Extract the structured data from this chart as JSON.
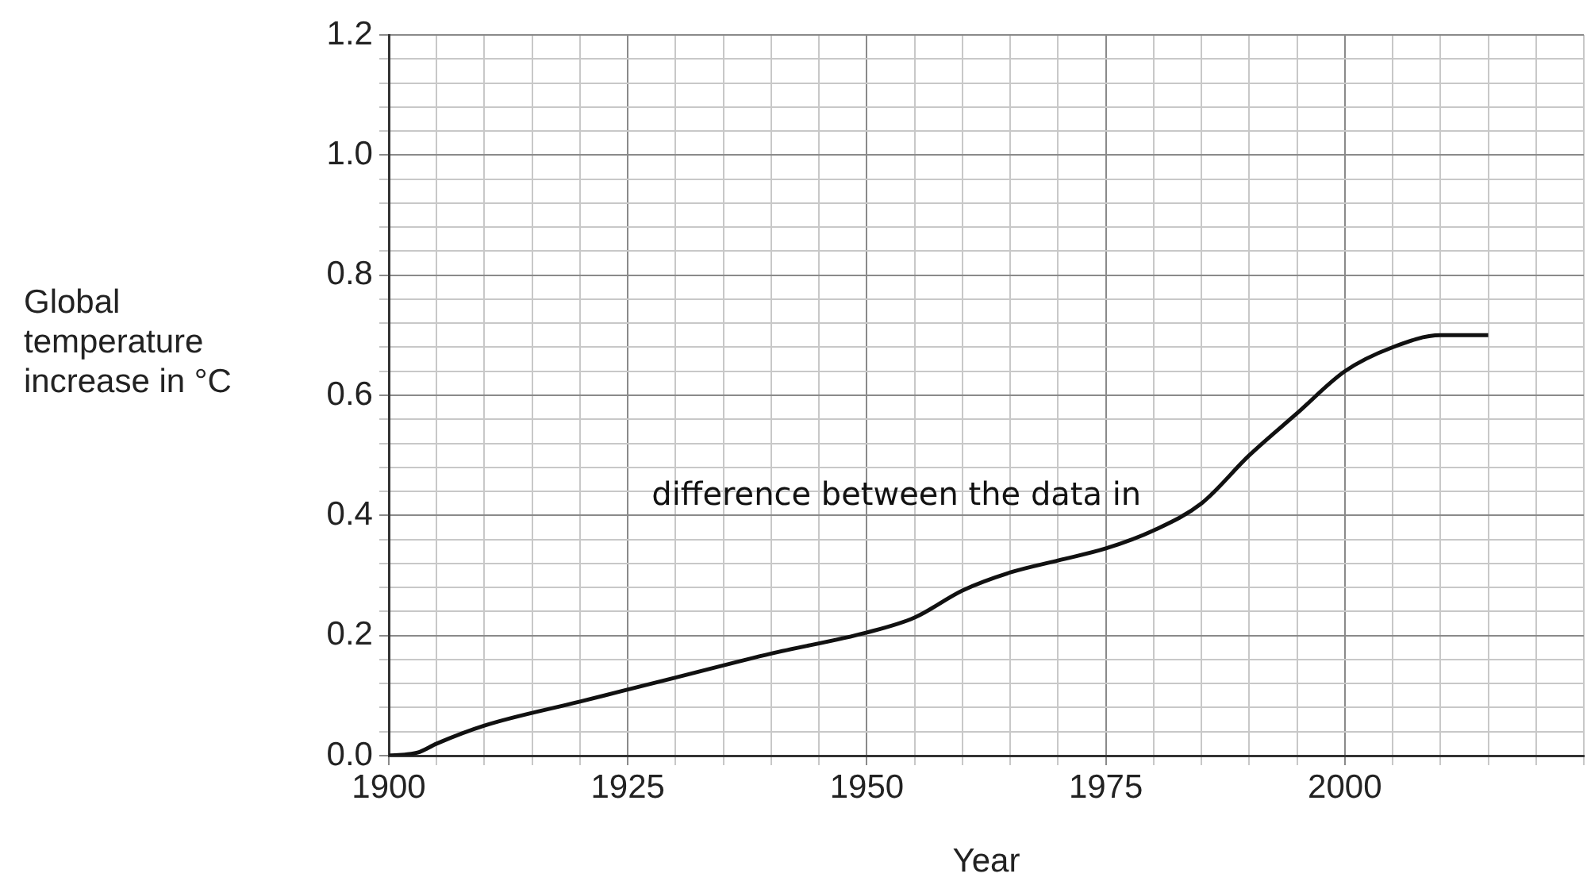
{
  "chart_data": {
    "type": "line",
    "xlabel": "Year",
    "ylabel": "Global temperature increase in °C",
    "annotations": [
      "difference between the data in"
    ],
    "x": [
      1900,
      1903,
      1905,
      1910,
      1920,
      1930,
      1940,
      1950,
      1955,
      1960,
      1965,
      1970,
      1975,
      1980,
      1985,
      1990,
      1995,
      2000,
      2005,
      2010,
      2015
    ],
    "values": [
      0,
      0.005,
      0.02,
      0.05,
      0.09,
      0.13,
      0.17,
      0.205,
      0.23,
      0.275,
      0.305,
      0.325,
      0.345,
      0.375,
      0.42,
      0.5,
      0.57,
      0.64,
      0.68,
      0.7,
      0.7
    ],
    "color": "#111111",
    "xlim": [
      1900,
      2025
    ],
    "ylim": [
      0,
      1.2
    ],
    "xticks": [
      1900,
      {
        "value": 1905,
        "label": null
      },
      {
        "value": 1910,
        "label": null
      },
      {
        "value": 1915,
        "label": null
      },
      {
        "value": 1920,
        "label": null
      },
      1925,
      {
        "value": 1930,
        "label": null
      },
      {
        "value": 1935,
        "label": null
      },
      {
        "value": 1940,
        "label": null
      },
      {
        "value": 1945,
        "label": null
      },
      1950,
      {
        "value": 1955,
        "label": null
      },
      {
        "value": 1960,
        "label": null
      },
      {
        "value": 1965,
        "label": null
      },
      {
        "value": 1970,
        "label": null
      },
      1975,
      {
        "value": 1980,
        "label": null
      },
      {
        "value": 1985,
        "label": null
      },
      {
        "value": 1990,
        "label": null
      },
      {
        "value": 1995,
        "label": null
      },
      2000,
      {
        "value": 2005,
        "label": null
      },
      {
        "value": 2010,
        "label": null
      },
      {
        "value": 2015,
        "label": null
      },
      {
        "value": 2020,
        "label": null
      },
      {
        "value": 2025,
        "label": null
      }
    ],
    "yticks": [
      {
        "value": 0,
        "label": "0.0"
      },
      {
        "value": 0.04,
        "label": null
      },
      {
        "value": 0.08,
        "label": null
      },
      {
        "value": 0.12,
        "label": null
      },
      {
        "value": 0.16,
        "label": null
      },
      {
        "value": 0.2,
        "label": "0.2"
      },
      {
        "value": 0.24,
        "label": null
      },
      {
        "value": 0.28,
        "label": null
      },
      {
        "value": 0.32,
        "label": null
      },
      {
        "value": 0.36,
        "label": null
      },
      {
        "value": 0.4,
        "label": "0.4"
      },
      {
        "value": 0.44,
        "label": null
      },
      {
        "value": 0.48,
        "label": null
      },
      {
        "value": 0.52,
        "label": null
      },
      {
        "value": 0.56,
        "label": null
      },
      {
        "value": 0.6,
        "label": "0.6"
      },
      {
        "value": 0.64,
        "label": null
      },
      {
        "value": 0.68,
        "label": null
      },
      {
        "value": 0.72,
        "label": null
      },
      {
        "value": 0.76,
        "label": null
      },
      {
        "value": 0.8,
        "label": "0.8"
      },
      {
        "value": 0.84,
        "label": null
      },
      {
        "value": 0.88,
        "label": null
      },
      {
        "value": 0.92,
        "label": null
      },
      {
        "value": 0.96,
        "label": null
      },
      {
        "value": 1.0,
        "label": "1.0"
      },
      {
        "value": 1.04,
        "label": null
      },
      {
        "value": 1.08,
        "label": null
      },
      {
        "value": 1.12,
        "label": null
      },
      {
        "value": 1.16,
        "label": null
      },
      {
        "value": 1.2,
        "label": "1.2"
      }
    ],
    "grid": true,
    "legend": false,
    "marker": "none",
    "line_style": "solid"
  }
}
